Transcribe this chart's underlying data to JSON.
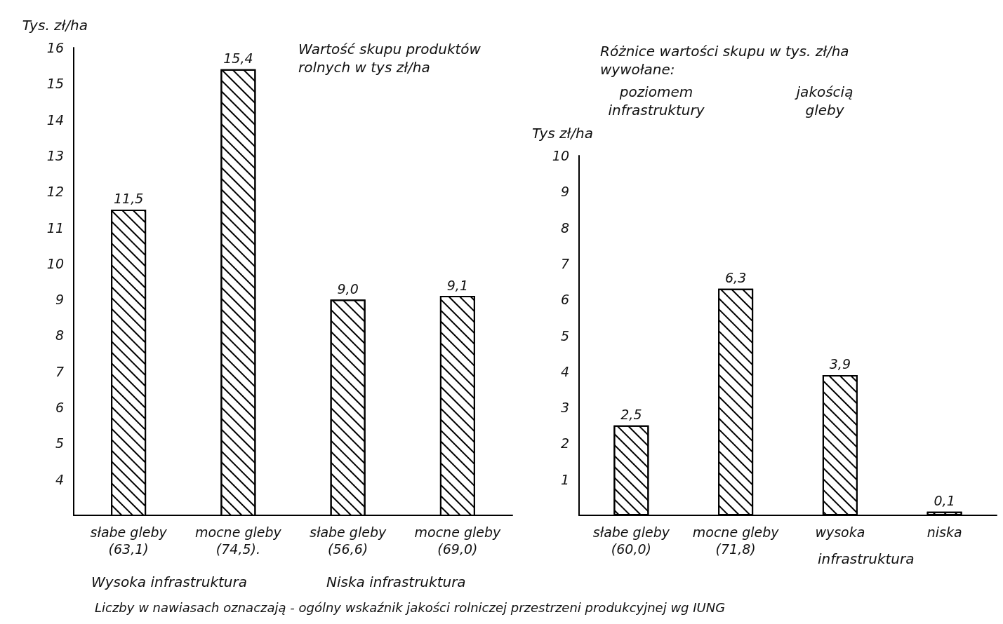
{
  "chart_data": [
    {
      "type": "bar",
      "title": "Wartość skupu produktów rolnych w tys zł/ha",
      "ylabel": "Tys. zł/ha",
      "categories": [
        "słabe gleby\n(63,1)",
        "mocne gleby\n(74,5).",
        "słabe gleby\n(56,6)",
        "mocne gleby\n(69,0)"
      ],
      "values": [
        11.5,
        15.4,
        9.0,
        9.1
      ],
      "value_labels": [
        "11,5",
        "15,4",
        "9,0",
        "9,1"
      ],
      "color": "#ffffff",
      "ylim": [
        3,
        16
      ],
      "yticks": [
        4,
        5,
        6,
        7,
        8,
        9,
        10,
        11,
        12,
        13,
        14,
        15,
        16
      ],
      "grid": false,
      "annotations": [
        "Wysoka infrastruktura",
        "Niska infrastruktura"
      ]
    },
    {
      "type": "bar",
      "title": "Różnice wartości skupu w tys. zł/ha wywołane:",
      "ylabel": "Tys zł/ha",
      "categories": [
        "słabe gleby\n(60,0)",
        "mocne gleby\n(71,8)",
        "wysoka",
        "niska"
      ],
      "values": [
        2.5,
        6.3,
        3.9,
        0.1
      ],
      "value_labels": [
        "2,5",
        "6,3",
        "3,9",
        "0,1"
      ],
      "color": "#ffffff",
      "ylim": [
        0,
        10
      ],
      "yticks": [
        1,
        2,
        3,
        4,
        5,
        6,
        7,
        8,
        9,
        10
      ],
      "grid": false,
      "annotations": [
        "poziomem infrastruktury",
        "jakością gleby",
        "infrastruktura",
        "Liczby w nawiasach oznaczają - ogólny wskaźnik jakości rolniczej przestrzeni produkcyjnej wg IUNG"
      ]
    }
  ]
}
